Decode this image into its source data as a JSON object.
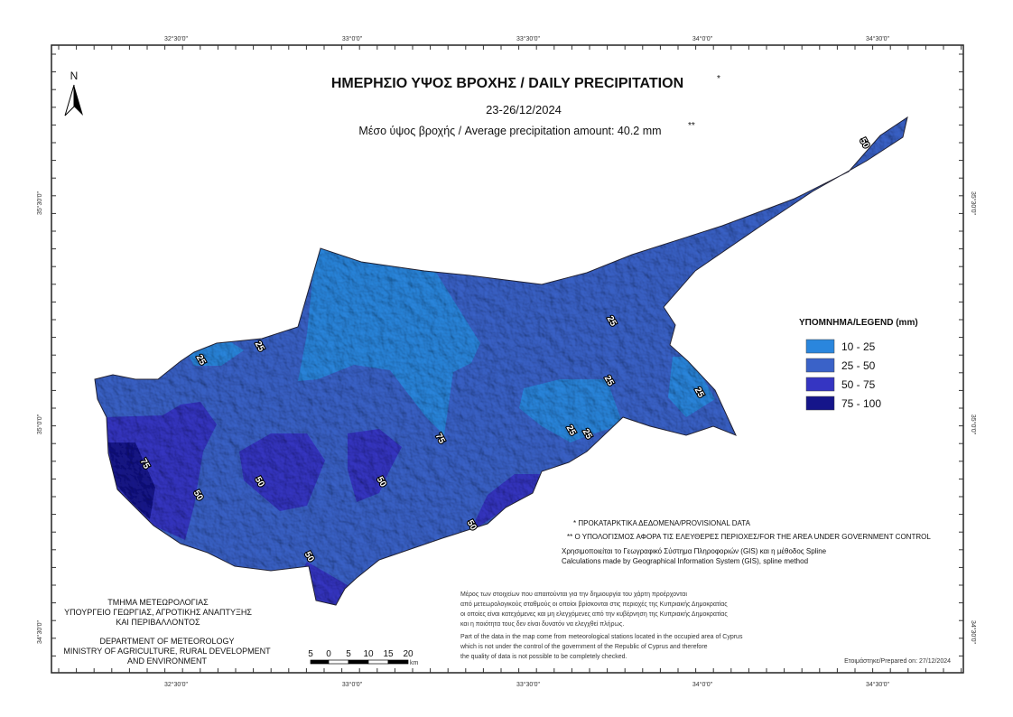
{
  "header": {
    "title": "ΗΜΕΡΗΣΙΟ ΥΨΟΣ ΒΡΟΧΗΣ / DAILY PRECIPITATION",
    "title_mark": "*",
    "date": "23-26/12/2024",
    "subtitle": "Μέσο ύψος βροχής / Average precipitation amount: 40.2 mm",
    "subtitle_mark": "**"
  },
  "north": "N",
  "legend": {
    "title": "ΥΠΟΜΝΗΜΑ/LEGEND (mm)",
    "items": [
      {
        "label": "10 - 25",
        "color": "#2a86dd"
      },
      {
        "label": "25 - 50",
        "color": "#3a62c8"
      },
      {
        "label": "50 - 75",
        "color": "#3535c2"
      },
      {
        "label": "75 - 100",
        "color": "#15158a"
      }
    ]
  },
  "notes": {
    "provisional": "* ΠΡΟΚΑΤΑΡΚΤΙΚΑ ΔΕΔΟΜΕΝΑ/PROVISIONAL DATA",
    "area": "** Ο ΥΠΟΛΟΓΙΣΜΟΣ ΑΦΟΡΑ ΤΙΣ ΕΛΕΥΘΕΡΕΣ ΠΕΡΙΟΧΕΣ/FOR THE AREA UNDER GOVERNMENT CONTROL",
    "gis_gr": "Χρησιμοποιείται το Γεωγραφικό Σύστημα Πληροφοριών (GIS) και η μέθοδος Spline",
    "gis_en": "Calculations made by Geographical Information System (GIS), spline method"
  },
  "disclaimer_gr": [
    "Μέρος των στοιχείων που απαιτούνται για την δημιουργία του χάρτη προέρχονται",
    "από μετεωρολογικούς σταθμούς οι οποίοι βρίσκονται στις περιοχές της Κυπριακής Δημοκρατίας",
    "οι οποίες είναι κατεχόμενες και μη ελεγχόμενες από την κυβέρνηση της Κυπριακής Δημοκρατίας",
    "και η ποιότητα τους δεν είναι δυνατόν να ελεγχθεί πλήρως."
  ],
  "disclaimer_en": [
    "Part of the data in the map come from meteorological stations located in the occupied area of Cyprus",
    "which is not under the control of the government of the Republic of Cyprus and therefore",
    "the quality of data is not possible to be completely checked."
  ],
  "department_gr": [
    "ΤΜΗΜΑ ΜΕΤΕΩΡΟΛΟΓΙΑΣ",
    "ΥΠΟΥΡΓΕΙΟ ΓΕΩΡΓΙΑΣ, ΑΓΡΟΤΙΚΗΣ ΑΝΑΠΤΥΞΗΣ",
    "ΚΑΙ ΠΕΡΙΒΑΛΛΟΝΤΟΣ"
  ],
  "department_en": [
    "DEPARTMENT OF METEOROLOGY",
    "MINISTRY OF AGRICULTURE, RURAL DEVELOPMENT",
    "AND ENVIRONMENT"
  ],
  "scale": {
    "labels": [
      "5",
      "0",
      "5",
      "10",
      "15",
      "20"
    ],
    "unit": "km"
  },
  "prepared": "Ετοιμάστηκε/Prepared on: 27/12/2024",
  "longitudes": [
    "32°30'0\"",
    "33°0'0\"",
    "33°30'0\"",
    "34°0'0\"",
    "34°30'0\""
  ],
  "latitudes": [
    "35°30'0\"",
    "35°0'0\"",
    "34°30'0\""
  ],
  "contour_labels": [
    "50",
    "25",
    "25",
    "25",
    "25",
    "25",
    "25",
    "25",
    "75",
    "50",
    "50",
    "50",
    "75",
    "50",
    "50"
  ]
}
